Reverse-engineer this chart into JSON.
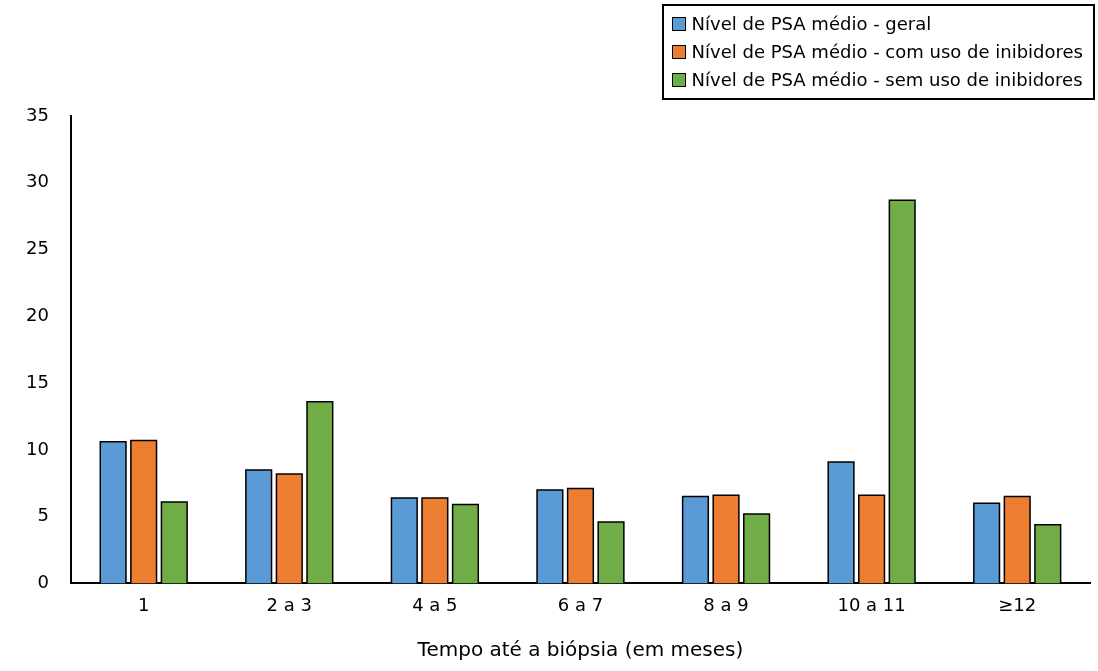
{
  "chart_data": {
    "type": "bar",
    "xlabel": "Tempo até a biópsia (em meses)",
    "categories": [
      "1",
      "2 a 3",
      "4 a 5",
      "6 a 7",
      "8 a 9",
      "10 a 11",
      "≥12"
    ],
    "series": [
      {
        "name": "Nível de PSA médio - geral",
        "color": "#5b9bd5",
        "values": [
          10.6,
          8.5,
          6.4,
          7.0,
          6.5,
          9.1,
          6.0
        ]
      },
      {
        "name": "Nível de PSA médio - com uso de inibidores",
        "color": "#ed7d31",
        "values": [
          10.7,
          8.2,
          6.4,
          7.1,
          6.6,
          6.6,
          6.5
        ]
      },
      {
        "name": "Nível de PSA médio - sem uso de inibidores",
        "color": "#70ad47",
        "values": [
          6.1,
          13.6,
          5.9,
          4.6,
          5.2,
          28.7,
          4.4
        ]
      }
    ],
    "ylim": [
      0,
      35
    ],
    "yticks": [
      0,
      5,
      10,
      15,
      20,
      25,
      30,
      35
    ],
    "grid": false,
    "legend": "top right"
  }
}
